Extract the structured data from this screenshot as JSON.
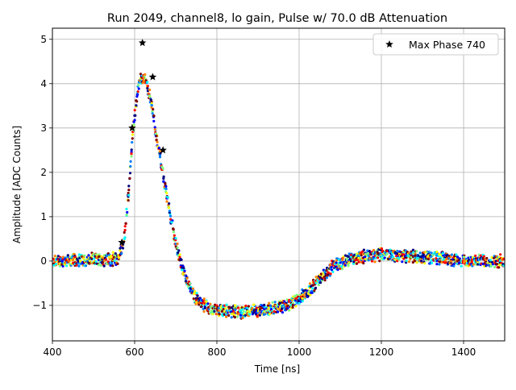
{
  "chart_data": {
    "type": "scatter",
    "title": "Run 2049, channel8, lo gain, Pulse w/ 70.0 dB Attenuation",
    "xlabel": "Time [ns]",
    "ylabel": "Amplitude [ADC Counts]",
    "xlim": [
      400,
      1500
    ],
    "ylim": [
      -1.8,
      5.25
    ],
    "xticks": [
      400,
      600,
      800,
      1000,
      1200,
      1400
    ],
    "yticks": [
      -1,
      0,
      1,
      2,
      3,
      4,
      5
    ],
    "grid": true,
    "legend": {
      "placement": "top-right",
      "entries": [
        "Max Phase 740"
      ]
    },
    "colormap": [
      "#00007f",
      "#0000ff",
      "#007fff",
      "#00ffff",
      "#7fff7f",
      "#ffff00",
      "#ff7f00",
      "#ff0000",
      "#7f0000"
    ],
    "series": [
      {
        "name": "Max Phase 740",
        "marker": "star",
        "color": "#000000",
        "x": [
          569,
          594,
          619,
          644,
          669
        ],
        "y": [
          0.42,
          3.0,
          4.92,
          4.15,
          2.5
        ]
      }
    ],
    "waveform_profile": {
      "description_points_x": [
        400,
        560,
        575,
        585,
        595,
        605,
        615,
        625,
        640,
        655,
        670,
        685,
        700,
        720,
        740,
        760,
        790,
        850,
        920,
        970,
        1000,
        1020,
        1050,
        1080,
        1110,
        1150,
        1200,
        1300,
        1400,
        1500
      ],
      "description_points_y": [
        0.0,
        0.05,
        0.5,
        1.5,
        2.8,
        3.7,
        4.1,
        4.1,
        3.6,
        2.7,
        1.9,
        1.1,
        0.4,
        -0.3,
        -0.7,
        -0.95,
        -1.1,
        -1.15,
        -1.1,
        -1.0,
        -0.85,
        -0.7,
        -0.4,
        -0.15,
        0.0,
        0.1,
        0.15,
        0.1,
        0.0,
        0.0
      ],
      "scatter_spread": 0.12
    }
  }
}
